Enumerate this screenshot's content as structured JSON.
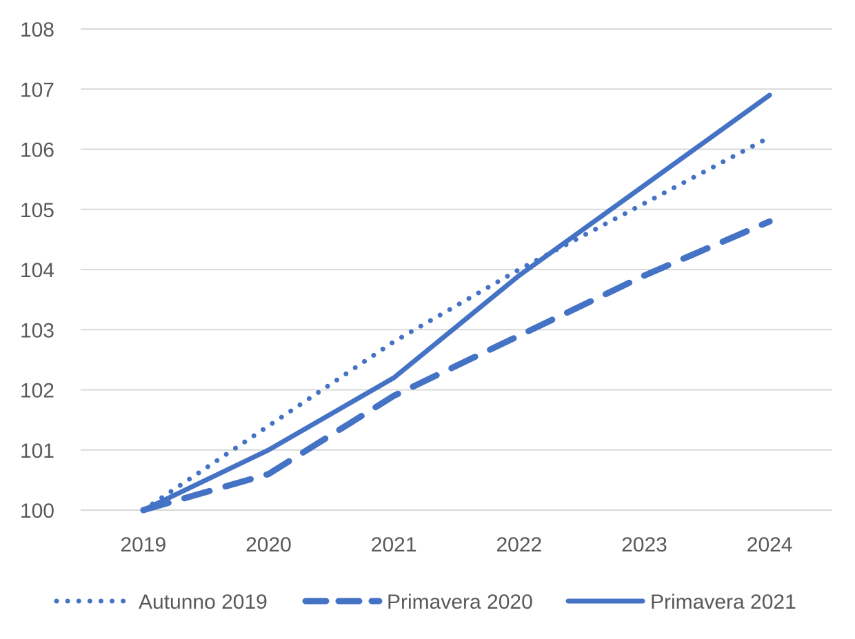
{
  "chart_data": {
    "type": "line",
    "categories": [
      "2019",
      "2020",
      "2021",
      "2022",
      "2023",
      "2024"
    ],
    "series": [
      {
        "name": "Autunno 2019",
        "values": [
          100,
          101.4,
          102.8,
          104.0,
          105.1,
          106.2
        ],
        "line_style": "dotted",
        "color": "#4472c4"
      },
      {
        "name": "Primavera 2020",
        "values": [
          100,
          100.6,
          101.9,
          102.9,
          103.9,
          104.8
        ],
        "line_style": "dashed",
        "color": "#4472c4"
      },
      {
        "name": "Primavera 2021",
        "values": [
          100,
          101.0,
          102.2,
          103.9,
          105.4,
          106.9
        ],
        "line_style": "solid",
        "color": "#4472c4"
      }
    ],
    "ylim": [
      100,
      108
    ],
    "yticks": [
      100,
      101,
      102,
      103,
      104,
      105,
      106,
      107,
      108
    ],
    "grid": true,
    "legend_position": "bottom",
    "title": "",
    "xlabel": "",
    "ylabel": ""
  },
  "colors": {
    "gridline": "#d9d9d9",
    "text": "#595959",
    "series": "#4472c4"
  }
}
